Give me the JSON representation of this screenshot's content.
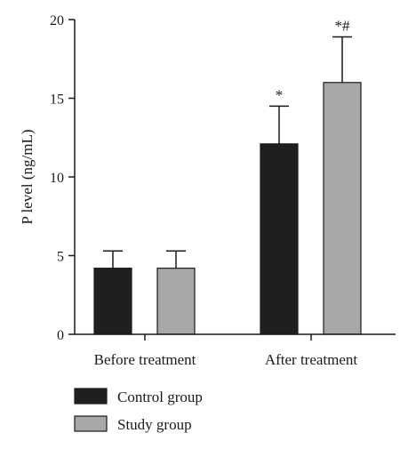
{
  "chart_data": {
    "type": "bar",
    "title": "",
    "xlabel": "",
    "ylabel": "P level (ng/mL)",
    "ylim": [
      0,
      20
    ],
    "yticks": [
      0,
      5,
      10,
      15,
      20
    ],
    "categories": [
      "Before treatment",
      "After treatment"
    ],
    "series": [
      {
        "name": "Control group",
        "color": "#1f1f1f",
        "values": [
          4.2,
          12.1
        ],
        "errors": [
          1.1,
          2.4
        ],
        "annotations": [
          "",
          "*"
        ]
      },
      {
        "name": "Study group",
        "color": "#a8a8a8",
        "values": [
          4.2,
          16.0
        ],
        "errors": [
          1.1,
          2.9
        ],
        "annotations": [
          "",
          "*#"
        ]
      }
    ],
    "grid": false,
    "legend_position": "bottom-left"
  }
}
